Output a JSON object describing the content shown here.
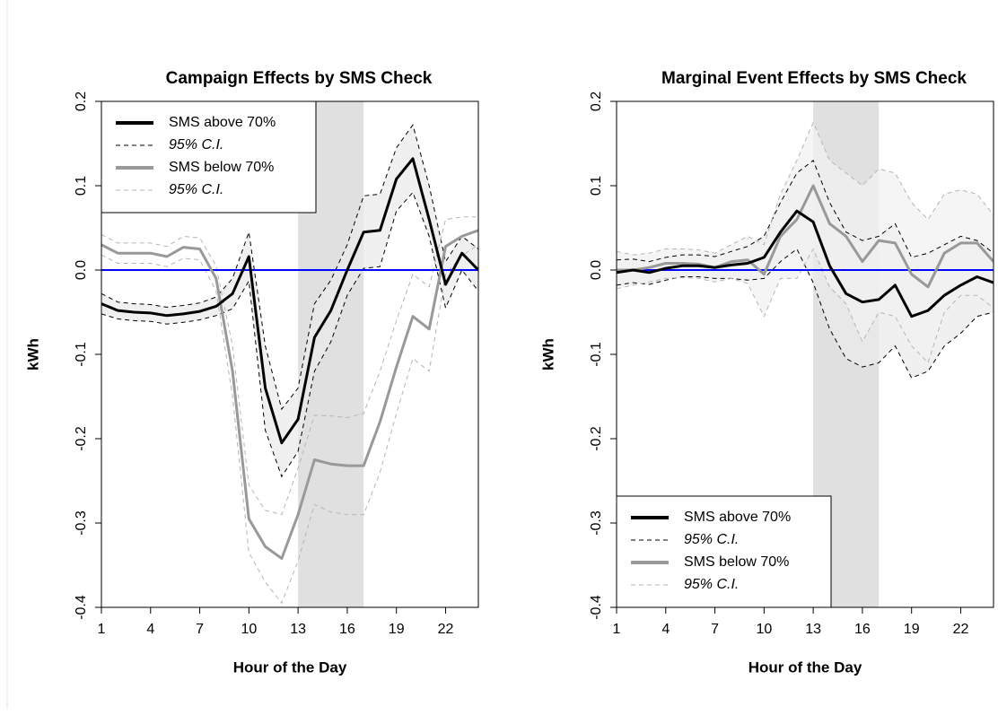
{
  "chart_data": [
    {
      "type": "line",
      "title": "Campaign Effects by SMS Check",
      "xlabel": "Hour of the Day",
      "ylabel": "kWh",
      "x": [
        1,
        2,
        3,
        4,
        5,
        6,
        7,
        8,
        9,
        10,
        11,
        12,
        13,
        14,
        15,
        16,
        17,
        18,
        19,
        20,
        21,
        22,
        23,
        24
      ],
      "xlim": [
        1,
        24
      ],
      "xticks": [
        1,
        4,
        7,
        10,
        13,
        16,
        19,
        22
      ],
      "ylim": [
        -0.4,
        0.2
      ],
      "yticks": [
        -0.4,
        -0.3,
        -0.2,
        -0.1,
        {
          "value": 0,
          "label": "0.0"
        },
        0.1,
        0.2
      ],
      "shade_x": [
        13,
        17
      ],
      "shade_color": "#e0e0e0",
      "ref_line": 0,
      "ref_color": "#0000ff",
      "legend": "top-left",
      "series": [
        {
          "name": "SMS above 70%",
          "color": "#000000",
          "ci_label": "95% C.I.",
          "ci_color": "#000000",
          "band_color": "#ebebeb",
          "values": [
            -0.04,
            -0.048,
            -0.05,
            -0.051,
            -0.054,
            -0.052,
            -0.049,
            -0.043,
            -0.028,
            0.016,
            -0.14,
            -0.205,
            -0.177,
            -0.08,
            -0.048,
            0.0,
            0.045,
            0.047,
            0.108,
            0.132,
            0.06,
            -0.017,
            0.02,
            0.0
          ],
          "upper": [
            -0.028,
            -0.038,
            -0.04,
            -0.041,
            -0.044,
            -0.042,
            -0.039,
            -0.032,
            -0.01,
            0.045,
            -0.09,
            -0.165,
            -0.14,
            -0.04,
            -0.012,
            0.03,
            0.088,
            0.09,
            0.145,
            0.172,
            0.1,
            0.01,
            0.04,
            0.025
          ],
          "lower": [
            -0.052,
            -0.058,
            -0.06,
            -0.061,
            -0.064,
            -0.062,
            -0.059,
            -0.054,
            -0.046,
            -0.013,
            -0.19,
            -0.245,
            -0.215,
            -0.12,
            -0.085,
            -0.03,
            0.002,
            0.004,
            0.07,
            0.092,
            0.04,
            -0.045,
            0.0,
            -0.025
          ]
        },
        {
          "name": "SMS below 70%",
          "color": "#999999",
          "ci_label": "95% C.I.",
          "ci_color": "#b5b5b5",
          "values": [
            0.03,
            0.02,
            0.02,
            0.02,
            0.016,
            0.027,
            0.025,
            -0.01,
            -0.12,
            -0.295,
            -0.328,
            -0.342,
            -0.29,
            -0.225,
            -0.23,
            -0.232,
            -0.232,
            -0.18,
            -0.115,
            -0.055,
            -0.07,
            0.028,
            0.04,
            0.047
          ],
          "upper": [
            0.042,
            0.032,
            0.032,
            0.032,
            0.028,
            0.04,
            0.038,
            0.005,
            -0.09,
            -0.255,
            -0.285,
            -0.29,
            -0.235,
            -0.172,
            -0.173,
            -0.175,
            -0.17,
            -0.12,
            -0.06,
            -0.005,
            -0.02,
            0.06,
            0.063,
            0.063
          ],
          "lower": [
            0.018,
            0.008,
            0.008,
            0.008,
            0.004,
            0.014,
            0.012,
            -0.025,
            -0.15,
            -0.335,
            -0.37,
            -0.395,
            -0.345,
            -0.278,
            -0.287,
            -0.29,
            -0.29,
            -0.24,
            -0.17,
            -0.105,
            -0.12,
            -0.005,
            0.017,
            0.03
          ]
        }
      ]
    },
    {
      "type": "line",
      "title": "Marginal Event Effects by SMS Check",
      "xlabel": "Hour of the Day",
      "ylabel": "kWh",
      "x": [
        1,
        2,
        3,
        4,
        5,
        6,
        7,
        8,
        9,
        10,
        11,
        12,
        13,
        14,
        15,
        16,
        17,
        18,
        19,
        20,
        21,
        22,
        23,
        24
      ],
      "xlim": [
        1,
        24
      ],
      "xticks": [
        1,
        4,
        7,
        10,
        13,
        16,
        19,
        22
      ],
      "ylim": [
        -0.4,
        0.2
      ],
      "yticks": [
        -0.4,
        -0.3,
        -0.2,
        -0.1,
        {
          "value": 0,
          "label": "0.0"
        },
        0.1,
        0.2
      ],
      "shade_x": [
        13,
        17
      ],
      "shade_color": "#e0e0e0",
      "ref_line": 0,
      "ref_color": "#0000ff",
      "legend": "bottom-left",
      "series": [
        {
          "name": "SMS above 70%",
          "color": "#000000",
          "ci_label": "95% C.I.",
          "ci_color": "#000000",
          "band_color": "#ebebeb",
          "values": [
            -0.003,
            0.0,
            -0.003,
            0.002,
            0.005,
            0.005,
            0.003,
            0.006,
            0.008,
            0.015,
            0.045,
            0.07,
            0.057,
            0.005,
            -0.028,
            -0.038,
            -0.035,
            -0.018,
            -0.055,
            -0.048,
            -0.03,
            -0.018,
            -0.008,
            -0.015
          ],
          "upper": [
            0.012,
            0.013,
            0.01,
            0.015,
            0.018,
            0.018,
            0.016,
            0.022,
            0.028,
            0.04,
            0.08,
            0.115,
            0.13,
            0.08,
            0.045,
            0.035,
            0.04,
            0.055,
            0.015,
            0.02,
            0.03,
            0.04,
            0.035,
            0.02
          ],
          "lower": [
            -0.018,
            -0.015,
            -0.017,
            -0.012,
            -0.008,
            -0.008,
            -0.01,
            -0.01,
            -0.012,
            -0.01,
            0.01,
            0.025,
            -0.015,
            -0.07,
            -0.105,
            -0.115,
            -0.11,
            -0.09,
            -0.128,
            -0.12,
            -0.09,
            -0.075,
            -0.055,
            -0.05
          ]
        },
        {
          "name": "SMS below 70%",
          "color": "#999999",
          "ci_label": "95% C.I.",
          "ci_color": "#b5b5b5",
          "band_color": "#f2f2f2",
          "values": [
            0.0,
            0.0,
            0.003,
            0.008,
            0.008,
            0.007,
            0.003,
            0.01,
            0.012,
            -0.005,
            0.04,
            0.06,
            0.1,
            0.055,
            0.04,
            0.01,
            0.035,
            0.032,
            -0.005,
            -0.02,
            0.02,
            0.032,
            0.032,
            0.01
          ],
          "upper": [
            0.022,
            0.018,
            0.02,
            0.025,
            0.025,
            0.024,
            0.02,
            0.03,
            0.04,
            0.03,
            0.09,
            0.13,
            0.175,
            0.13,
            0.115,
            0.1,
            0.12,
            0.115,
            0.08,
            0.06,
            0.09,
            0.095,
            0.09,
            0.065
          ],
          "lower": [
            -0.022,
            -0.018,
            -0.014,
            -0.01,
            -0.009,
            -0.01,
            -0.014,
            -0.01,
            -0.016,
            -0.055,
            -0.01,
            -0.01,
            0.025,
            -0.02,
            -0.04,
            -0.085,
            -0.05,
            -0.055,
            -0.09,
            -0.11,
            -0.05,
            -0.03,
            -0.03,
            -0.045
          ]
        }
      ]
    }
  ]
}
